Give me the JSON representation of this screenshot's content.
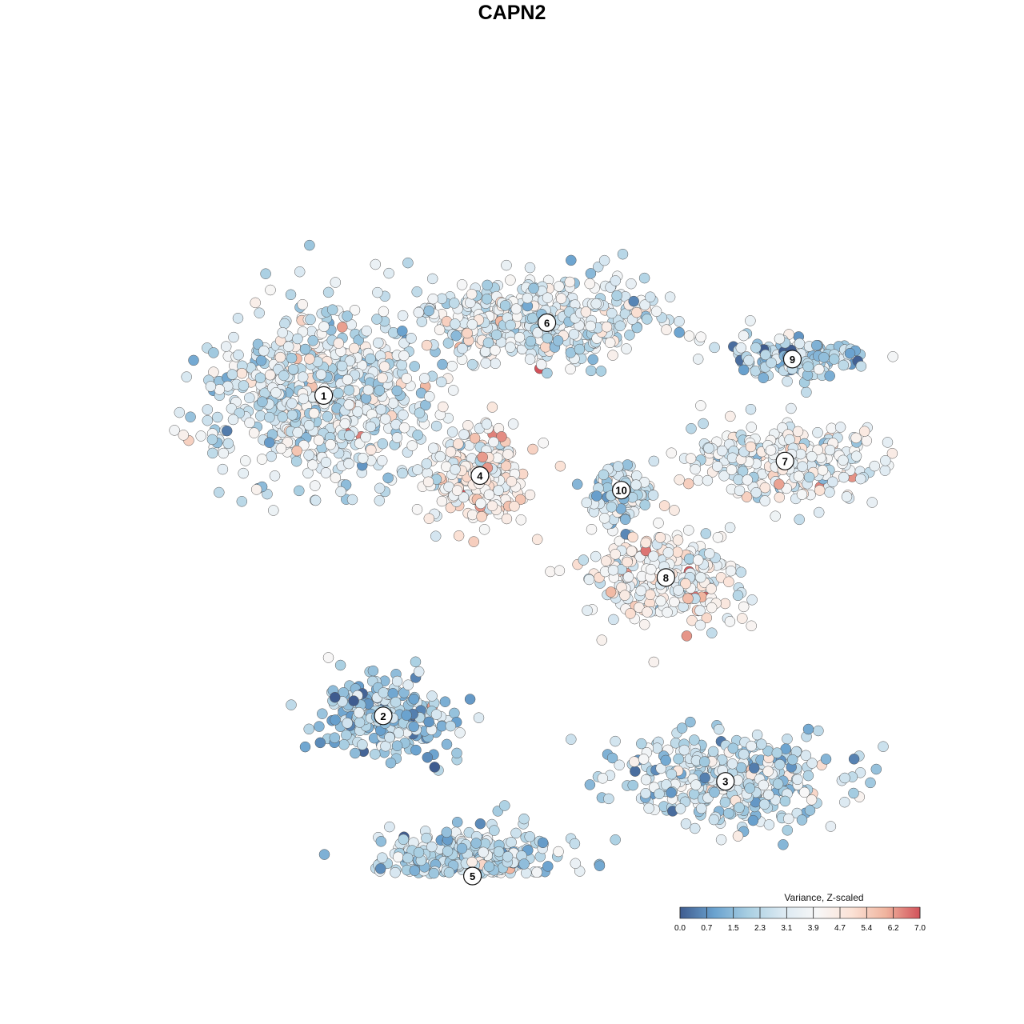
{
  "title": "CAPN2",
  "chart_data": {
    "type": "scatter",
    "title": "CAPN2",
    "xlabel": "",
    "ylabel": "",
    "grid": false,
    "legend": {
      "title": "Variance, Z-scaled",
      "placement": "bottom-right",
      "ticks": [
        "0.0",
        "0.7",
        "1.5",
        "2.3",
        "3.1",
        "3.9",
        "4.7",
        "5.4",
        "6.2",
        "7.0"
      ],
      "range": [
        0,
        7
      ],
      "colors": [
        "#3f5c8f",
        "#6aa2cf",
        "#a9cfe2",
        "#dbe9f2",
        "#f7f7f7",
        "#fbe2d6",
        "#f0b49e",
        "#d2525a"
      ]
    },
    "clusters": [
      {
        "label": "1",
        "x": 0.22,
        "y": 0.66,
        "spread": [
          0.17,
          0.14
        ],
        "points": 650,
        "mean": 3.0
      },
      {
        "label": "2",
        "x": 0.3,
        "y": 0.22,
        "spread": [
          0.1,
          0.06
        ],
        "points": 230,
        "mean": 2.0
      },
      {
        "label": "3",
        "x": 0.76,
        "y": 0.13,
        "spread": [
          0.15,
          0.07
        ],
        "points": 380,
        "mean": 2.6
      },
      {
        "label": "4",
        "x": 0.43,
        "y": 0.55,
        "spread": [
          0.07,
          0.07
        ],
        "points": 230,
        "mean": 4.1
      },
      {
        "label": "5",
        "x": 0.42,
        "y": 0.0,
        "spread": [
          0.14,
          0.07
        ],
        "points": 540,
        "mean": 2.5
      },
      {
        "label": "6",
        "x": 0.52,
        "y": 0.76,
        "spread": [
          0.18,
          0.06
        ],
        "points": 460,
        "mean": 3.1
      },
      {
        "label": "7",
        "x": 0.84,
        "y": 0.57,
        "spread": [
          0.14,
          0.06
        ],
        "points": 270,
        "mean": 3.5
      },
      {
        "label": "8",
        "x": 0.68,
        "y": 0.41,
        "spread": [
          0.12,
          0.07
        ],
        "points": 280,
        "mean": 4.0
      },
      {
        "label": "9",
        "x": 0.85,
        "y": 0.71,
        "spread": [
          0.09,
          0.03
        ],
        "points": 150,
        "mean": 2.2
      },
      {
        "label": "10",
        "x": 0.62,
        "y": 0.53,
        "spread": [
          0.04,
          0.05
        ],
        "points": 110,
        "mean": 2.7
      }
    ]
  }
}
